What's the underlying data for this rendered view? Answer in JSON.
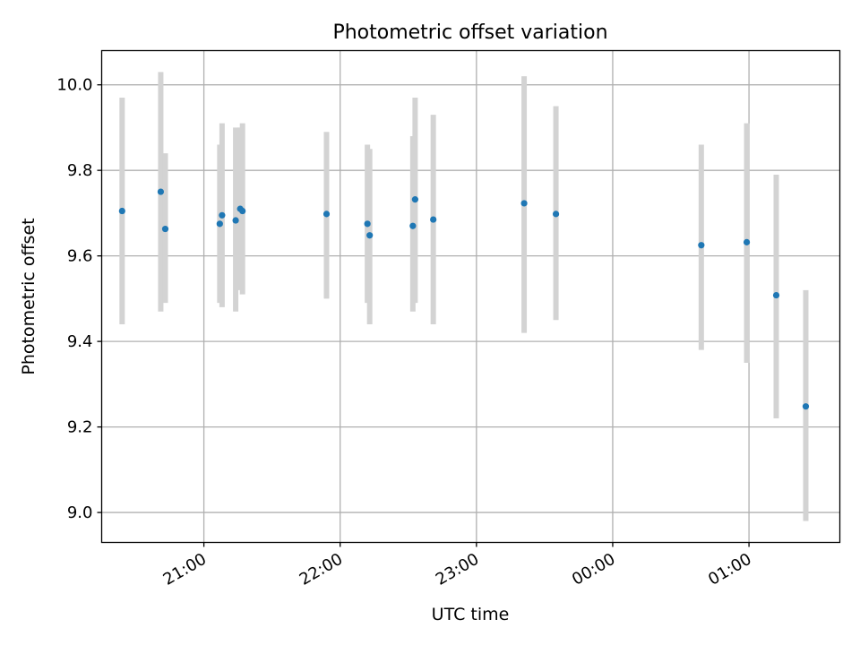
{
  "chart_data": {
    "type": "scatter",
    "title": "Photometric offset variation",
    "xlabel": "UTC time",
    "ylabel": "Photometric offset",
    "x_unit": "UTC time (h:mm, continuing past midnight)",
    "xlim": [
      "20:15",
      "01:40"
    ],
    "ylim": [
      8.93,
      10.08
    ],
    "xticks": [
      "21:00",
      "22:00",
      "23:00",
      "00:00",
      "01:00"
    ],
    "yticks": [
      "9.0",
      "9.2",
      "9.4",
      "9.6",
      "9.8",
      "10.0"
    ],
    "grid": true,
    "legend": "none",
    "colors": {
      "point": "#1f77b4",
      "errorbar": "#d3d3d3",
      "grid": "#b0b0b0",
      "axes": "#000000"
    },
    "points": [
      {
        "x": "20:24",
        "y": 9.705,
        "ylow": 9.44,
        "yhigh": 9.97
      },
      {
        "x": "20:41",
        "y": 9.75,
        "ylow": 9.47,
        "yhigh": 10.03
      },
      {
        "x": "20:43",
        "y": 9.663,
        "ylow": 9.49,
        "yhigh": 9.84
      },
      {
        "x": "21:07",
        "y": 9.675,
        "ylow": 9.49,
        "yhigh": 9.86
      },
      {
        "x": "21:08",
        "y": 9.695,
        "ylow": 9.48,
        "yhigh": 9.91
      },
      {
        "x": "21:14",
        "y": 9.683,
        "ylow": 9.47,
        "yhigh": 9.9
      },
      {
        "x": "21:16",
        "y": 9.71,
        "ylow": 9.52,
        "yhigh": 9.9
      },
      {
        "x": "21:17",
        "y": 9.705,
        "ylow": 9.51,
        "yhigh": 9.91
      },
      {
        "x": "21:54",
        "y": 9.698,
        "ylow": 9.5,
        "yhigh": 9.89
      },
      {
        "x": "22:12",
        "y": 9.675,
        "ylow": 9.49,
        "yhigh": 9.86
      },
      {
        "x": "22:13",
        "y": 9.648,
        "ylow": 9.44,
        "yhigh": 9.85
      },
      {
        "x": "22:32",
        "y": 9.67,
        "ylow": 9.47,
        "yhigh": 9.88
      },
      {
        "x": "22:33",
        "y": 9.732,
        "ylow": 9.49,
        "yhigh": 9.97
      },
      {
        "x": "22:41",
        "y": 9.685,
        "ylow": 9.44,
        "yhigh": 9.93
      },
      {
        "x": "23:21",
        "y": 9.723,
        "ylow": 9.42,
        "yhigh": 10.02
      },
      {
        "x": "23:35",
        "y": 9.698,
        "ylow": 9.45,
        "yhigh": 9.95
      },
      {
        "x": "00:39",
        "y": 9.625,
        "ylow": 9.38,
        "yhigh": 9.86
      },
      {
        "x": "00:59",
        "y": 9.632,
        "ylow": 9.35,
        "yhigh": 9.91
      },
      {
        "x": "01:12",
        "y": 9.508,
        "ylow": 9.22,
        "yhigh": 9.79
      },
      {
        "x": "01:25",
        "y": 9.248,
        "ylow": 8.98,
        "yhigh": 9.52
      }
    ]
  }
}
